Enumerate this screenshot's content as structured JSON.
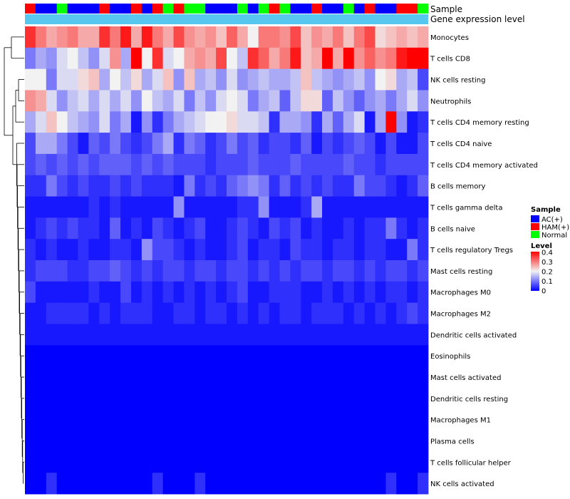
{
  "chart_data": {
    "type": "heatmap",
    "annotation_labels": {
      "sample": "Sample",
      "expression": "Gene expression level"
    },
    "sample_groups": [
      "AC(+)",
      "HAM(+)",
      "Normal"
    ],
    "group_colors": {
      "AC(+)": "#0000ff",
      "HAM(+)": "#ff0000",
      "Normal": "#00ff00"
    },
    "expression_annotation_color": "#58c7f0",
    "column_samples": [
      "HAM(+)",
      "AC(+)",
      "AC(+)",
      "Normal",
      "AC(+)",
      "AC(+)",
      "AC(+)",
      "HAM(+)",
      "AC(+)",
      "AC(+)",
      "HAM(+)",
      "AC(+)",
      "HAM(+)",
      "Normal",
      "HAM(+)",
      "Normal",
      "Normal",
      "AC(+)",
      "AC(+)",
      "AC(+)",
      "Normal",
      "AC(+)",
      "Normal",
      "HAM(+)",
      "Normal",
      "AC(+)",
      "AC(+)",
      "HAM(+)",
      "AC(+)",
      "AC(+)",
      "Normal",
      "AC(+)",
      "HAM(+)",
      "AC(+)",
      "AC(+)",
      "HAM(+)",
      "HAM(+)",
      "Normal"
    ],
    "rows": [
      "Monocytes",
      "T cells CD8",
      "NK cells resting",
      "Neutrophils",
      "T cells CD4 memory resting",
      "T cells CD4 naive",
      "T cells CD4 memory activated",
      "B cells memory",
      "T cells gamma delta",
      "B cells naive",
      "T cells regulatory  Tregs",
      "Mast cells resting",
      "Macrophages M0",
      "Macrophages M2",
      "Dendritic cells activated",
      "Eosinophils",
      "Mast cells activated",
      "Dendritic cells resting",
      "Macrophages M1",
      "Plasma cells",
      "T cells follicular helper",
      "NK cells activated"
    ],
    "values": [
      [
        0.36,
        0.3,
        0.26,
        0.28,
        0.3,
        0.26,
        0.26,
        0.36,
        0.3,
        0.38,
        0.26,
        0.38,
        0.3,
        0.26,
        0.34,
        0.28,
        0.26,
        0.28,
        0.24,
        0.32,
        0.26,
        0.2,
        0.3,
        0.3,
        0.28,
        0.34,
        0.24,
        0.28,
        0.26,
        0.3,
        0.24,
        0.3,
        0.34,
        0.22,
        0.24,
        0.26,
        0.24,
        0.26
      ],
      [
        0.1,
        0.14,
        0.12,
        0.18,
        0.2,
        0.16,
        0.12,
        0.18,
        0.28,
        0.14,
        0.4,
        0.2,
        0.36,
        0.18,
        0.2,
        0.26,
        0.28,
        0.26,
        0.34,
        0.2,
        0.16,
        0.36,
        0.32,
        0.26,
        0.3,
        0.38,
        0.24,
        0.26,
        0.4,
        0.26,
        0.4,
        0.28,
        0.32,
        0.28,
        0.3,
        0.38,
        0.4,
        0.4
      ],
      [
        0.2,
        0.2,
        0.1,
        0.18,
        0.18,
        0.22,
        0.24,
        0.14,
        0.2,
        0.16,
        0.22,
        0.14,
        0.18,
        0.24,
        0.12,
        0.24,
        0.14,
        0.16,
        0.12,
        0.18,
        0.12,
        0.14,
        0.16,
        0.14,
        0.14,
        0.16,
        0.24,
        0.16,
        0.14,
        0.12,
        0.14,
        0.16,
        0.12,
        0.2,
        0.22,
        0.14,
        0.16,
        0.06
      ],
      [
        0.28,
        0.26,
        0.18,
        0.12,
        0.16,
        0.18,
        0.14,
        0.18,
        0.14,
        0.18,
        0.12,
        0.2,
        0.16,
        0.14,
        0.18,
        0.1,
        0.16,
        0.12,
        0.18,
        0.2,
        0.18,
        0.1,
        0.14,
        0.16,
        0.08,
        0.16,
        0.22,
        0.22,
        0.08,
        0.16,
        0.12,
        0.08,
        0.12,
        0.14,
        0.1,
        0.14,
        0.18,
        0.12
      ],
      [
        0.14,
        0.18,
        0.24,
        0.2,
        0.16,
        0.14,
        0.12,
        0.18,
        0.1,
        0.14,
        0.02,
        0.12,
        0.04,
        0.1,
        0.14,
        0.16,
        0.18,
        0.2,
        0.2,
        0.22,
        0.18,
        0.18,
        0.16,
        0.04,
        0.14,
        0.14,
        0.12,
        0.04,
        0.14,
        0.08,
        0.14,
        0.18,
        0.02,
        0.14,
        0.4,
        0.12,
        0.02,
        0.04
      ],
      [
        0.06,
        0.14,
        0.14,
        0.1,
        0.06,
        0.02,
        0.08,
        0.06,
        0.1,
        0.06,
        0.04,
        0.06,
        0.1,
        0.14,
        0.04,
        0.1,
        0.08,
        0.04,
        0.06,
        0.1,
        0.06,
        0.08,
        0.04,
        0.06,
        0.06,
        0.04,
        0.08,
        0.02,
        0.06,
        0.04,
        0.06,
        0.08,
        0.06,
        0.02,
        0.06,
        0.02,
        0.02,
        0.06
      ],
      [
        0.06,
        0.08,
        0.06,
        0.08,
        0.06,
        0.08,
        0.06,
        0.08,
        0.08,
        0.08,
        0.06,
        0.08,
        0.06,
        0.08,
        0.06,
        0.06,
        0.06,
        0.04,
        0.06,
        0.06,
        0.06,
        0.08,
        0.06,
        0.06,
        0.06,
        0.08,
        0.06,
        0.06,
        0.06,
        0.06,
        0.08,
        0.06,
        0.06,
        0.04,
        0.06,
        0.06,
        0.06,
        0.06
      ],
      [
        0.04,
        0.04,
        0.1,
        0.06,
        0.04,
        0.06,
        0.04,
        0.04,
        0.06,
        0.04,
        0.06,
        0.04,
        0.04,
        0.04,
        0.02,
        0.1,
        0.04,
        0.06,
        0.04,
        0.08,
        0.1,
        0.12,
        0.1,
        0.04,
        0.08,
        0.04,
        0.06,
        0.04,
        0.06,
        0.04,
        0.04,
        0.1,
        0.06,
        0.06,
        0.04,
        0.02,
        0.04,
        0.08
      ],
      [
        0.02,
        0.02,
        0.02,
        0.02,
        0.02,
        0.02,
        0.04,
        0.02,
        0.04,
        0.02,
        0.02,
        0.02,
        0.02,
        0.02,
        0.12,
        0.02,
        0.02,
        0.02,
        0.02,
        0.02,
        0.04,
        0.04,
        0.12,
        0.02,
        0.02,
        0.02,
        0.04,
        0.14,
        0.02,
        0.02,
        0.02,
        0.02,
        0.02,
        0.02,
        0.02,
        0.02,
        0.02,
        0.02
      ],
      [
        0.02,
        0.04,
        0.06,
        0.04,
        0.06,
        0.04,
        0.04,
        0.02,
        0.08,
        0.02,
        0.04,
        0.02,
        0.06,
        0.04,
        0.02,
        0.04,
        0.06,
        0.02,
        0.02,
        0.04,
        0.06,
        0.04,
        0.02,
        0.06,
        0.04,
        0.06,
        0.02,
        0.04,
        0.02,
        0.02,
        0.04,
        0.02,
        0.04,
        0.04,
        0.1,
        0.04,
        0.02,
        0.04
      ],
      [
        0.04,
        0.02,
        0.04,
        0.02,
        0.02,
        0.04,
        0.02,
        0.02,
        0.04,
        0.04,
        0.02,
        0.12,
        0.06,
        0.06,
        0.04,
        0.02,
        0.04,
        0.02,
        0.02,
        0.04,
        0.06,
        0.02,
        0.04,
        0.04,
        0.02,
        0.06,
        0.04,
        0.04,
        0.02,
        0.04,
        0.04,
        0.02,
        0.04,
        0.04,
        0.02,
        0.02,
        0.1,
        0.04
      ],
      [
        0.04,
        0.06,
        0.06,
        0.06,
        0.04,
        0.04,
        0.06,
        0.06,
        0.08,
        0.06,
        0.04,
        0.06,
        0.04,
        0.06,
        0.06,
        0.04,
        0.06,
        0.06,
        0.04,
        0.06,
        0.06,
        0.04,
        0.06,
        0.04,
        0.06,
        0.04,
        0.06,
        0.06,
        0.04,
        0.06,
        0.06,
        0.04,
        0.06,
        0.04,
        0.06,
        0.06,
        0.04,
        0.06
      ],
      [
        0.06,
        0.02,
        0.02,
        0.02,
        0.02,
        0.02,
        0.04,
        0.02,
        0.02,
        0.06,
        0.02,
        0.04,
        0.02,
        0.04,
        0.02,
        0.04,
        0.02,
        0.04,
        0.02,
        0.04,
        0.06,
        0.02,
        0.02,
        0.04,
        0.04,
        0.04,
        0.02,
        0.02,
        0.04,
        0.02,
        0.04,
        0.02,
        0.04,
        0.02,
        0.04,
        0.04,
        0.02,
        0.04
      ],
      [
        0.02,
        0.02,
        0.04,
        0.04,
        0.04,
        0.04,
        0.02,
        0.04,
        0.02,
        0.04,
        0.04,
        0.04,
        0.02,
        0.02,
        0.04,
        0.04,
        0.02,
        0.04,
        0.04,
        0.02,
        0.04,
        0.02,
        0.04,
        0.02,
        0.04,
        0.04,
        0.02,
        0.04,
        0.04,
        0.04,
        0.02,
        0.04,
        0.02,
        0.04,
        0.02,
        0.04,
        0.06,
        0.04
      ],
      [
        0.02,
        0.02,
        0.02,
        0.02,
        0.02,
        0.02,
        0.02,
        0.02,
        0.02,
        0.02,
        0.02,
        0.02,
        0.02,
        0.02,
        0.02,
        0.02,
        0.02,
        0.02,
        0.02,
        0.02,
        0.02,
        0.02,
        0.02,
        0.02,
        0.02,
        0.02,
        0.02,
        0.02,
        0.02,
        0.02,
        0.02,
        0.02,
        0.02,
        0.02,
        0.02,
        0.02,
        0.02,
        0.02
      ],
      [
        0.0,
        0.0,
        0.0,
        0.0,
        0.0,
        0.0,
        0.0,
        0.0,
        0.0,
        0.0,
        0.0,
        0.0,
        0.0,
        0.0,
        0.0,
        0.0,
        0.0,
        0.0,
        0.0,
        0.0,
        0.0,
        0.0,
        0.0,
        0.0,
        0.0,
        0.0,
        0.0,
        0.0,
        0.0,
        0.0,
        0.0,
        0.0,
        0.0,
        0.0,
        0.0,
        0.0,
        0.0,
        0.0
      ],
      [
        0.0,
        0.0,
        0.0,
        0.0,
        0.0,
        0.0,
        0.0,
        0.0,
        0.0,
        0.0,
        0.0,
        0.0,
        0.0,
        0.0,
        0.0,
        0.0,
        0.0,
        0.0,
        0.0,
        0.0,
        0.0,
        0.0,
        0.0,
        0.0,
        0.0,
        0.0,
        0.0,
        0.0,
        0.0,
        0.0,
        0.0,
        0.0,
        0.0,
        0.0,
        0.0,
        0.0,
        0.0,
        0.0
      ],
      [
        0.0,
        0.0,
        0.0,
        0.0,
        0.0,
        0.0,
        0.0,
        0.0,
        0.0,
        0.0,
        0.0,
        0.0,
        0.0,
        0.0,
        0.0,
        0.0,
        0.0,
        0.0,
        0.0,
        0.0,
        0.0,
        0.0,
        0.0,
        0.0,
        0.0,
        0.0,
        0.0,
        0.0,
        0.0,
        0.0,
        0.0,
        0.0,
        0.0,
        0.0,
        0.0,
        0.0,
        0.0,
        0.0
      ],
      [
        0.0,
        0.0,
        0.0,
        0.0,
        0.0,
        0.0,
        0.0,
        0.0,
        0.0,
        0.0,
        0.0,
        0.0,
        0.0,
        0.0,
        0.0,
        0.0,
        0.0,
        0.0,
        0.0,
        0.0,
        0.0,
        0.0,
        0.0,
        0.0,
        0.0,
        0.0,
        0.0,
        0.0,
        0.0,
        0.0,
        0.0,
        0.0,
        0.0,
        0.0,
        0.0,
        0.0,
        0.0,
        0.0
      ],
      [
        0.0,
        0.0,
        0.0,
        0.0,
        0.0,
        0.0,
        0.0,
        0.0,
        0.0,
        0.0,
        0.0,
        0.0,
        0.0,
        0.0,
        0.0,
        0.0,
        0.0,
        0.0,
        0.0,
        0.0,
        0.0,
        0.0,
        0.0,
        0.0,
        0.0,
        0.0,
        0.0,
        0.0,
        0.0,
        0.0,
        0.0,
        0.0,
        0.0,
        0.0,
        0.0,
        0.0,
        0.0,
        0.0
      ],
      [
        0.0,
        0.0,
        0.0,
        0.0,
        0.0,
        0.0,
        0.0,
        0.0,
        0.0,
        0.0,
        0.0,
        0.0,
        0.0,
        0.0,
        0.0,
        0.0,
        0.0,
        0.0,
        0.0,
        0.0,
        0.0,
        0.0,
        0.0,
        0.0,
        0.0,
        0.0,
        0.0,
        0.0,
        0.0,
        0.0,
        0.0,
        0.0,
        0.0,
        0.0,
        0.0,
        0.0,
        0.0,
        0.0
      ],
      [
        0.0,
        0.0,
        0.04,
        0.0,
        0.0,
        0.0,
        0.0,
        0.0,
        0.0,
        0.0,
        0.0,
        0.0,
        0.04,
        0.0,
        0.0,
        0.0,
        0.04,
        0.0,
        0.0,
        0.0,
        0.0,
        0.0,
        0.0,
        0.0,
        0.0,
        0.0,
        0.0,
        0.0,
        0.0,
        0.0,
        0.0,
        0.0,
        0.0,
        0.0,
        0.04,
        0.0,
        0.0,
        0.04
      ]
    ],
    "color_scale": {
      "min": 0,
      "mid": 0.2,
      "max": 0.4,
      "low": "#0000ff",
      "midColor": "#f2f2f2",
      "high": "#ff0000"
    },
    "legend": {
      "sample_title": "Sample",
      "level_title": "Level",
      "level_ticks": [
        "0.4",
        "0.3",
        "0.2",
        "0.1",
        "0"
      ],
      "placement": "right"
    }
  }
}
